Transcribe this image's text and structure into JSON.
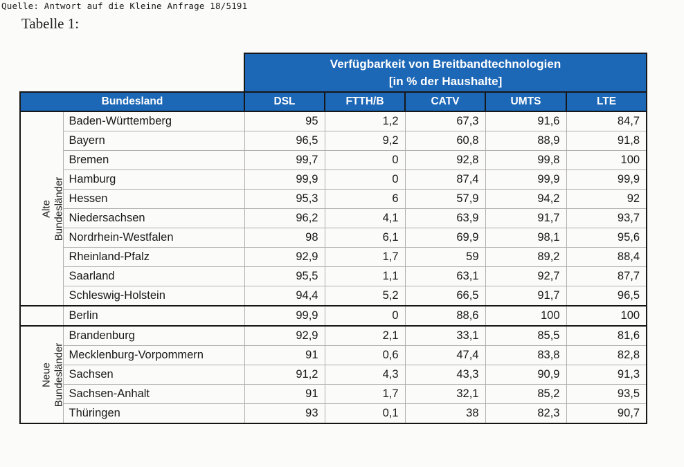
{
  "page": {
    "source_line": "Quelle: Antwort auf die Kleine Anfrage 18/5191",
    "caption": "Tabelle 1:"
  },
  "colors": {
    "header_blue": "#1c67b6",
    "border_dark": "#171717",
    "grid_gray": "#b0afac"
  },
  "table": {
    "title_line1": "Verfügbarkeit von Breitbandtechnologien",
    "title_line2": "[in % der Haushalte]",
    "bundesland_header": "Bundesland",
    "tech_headers": [
      "DSL",
      "FTTH/B",
      "CATV",
      "UMTS",
      "LTE"
    ],
    "row_groups": [
      {
        "label_line1": "Alte",
        "label_line2": "Bundesländer",
        "rows": [
          {
            "name": "Baden-Württemberg",
            "values": [
              "95",
              "1,2",
              "67,3",
              "91,6",
              "84,7"
            ]
          },
          {
            "name": "Bayern",
            "values": [
              "96,5",
              "9,2",
              "60,8",
              "88,9",
              "91,8"
            ]
          },
          {
            "name": "Bremen",
            "values": [
              "99,7",
              "0",
              "92,8",
              "99,8",
              "100"
            ]
          },
          {
            "name": "Hamburg",
            "values": [
              "99,9",
              "0",
              "87,4",
              "99,9",
              "99,9"
            ]
          },
          {
            "name": "Hessen",
            "values": [
              "95,3",
              "6",
              "57,9",
              "94,2",
              "92"
            ]
          },
          {
            "name": "Niedersachsen",
            "values": [
              "96,2",
              "4,1",
              "63,9",
              "91,7",
              "93,7"
            ]
          },
          {
            "name": "Nordrhein-Westfalen",
            "values": [
              "98",
              "6,1",
              "69,9",
              "98,1",
              "95,6"
            ]
          },
          {
            "name": "Rheinland-Pfalz",
            "values": [
              "92,9",
              "1,7",
              "59",
              "89,2",
              "88,4"
            ]
          },
          {
            "name": "Saarland",
            "values": [
              "95,5",
              "1,1",
              "63,1",
              "92,7",
              "87,7"
            ]
          },
          {
            "name": "Schleswig-Holstein",
            "values": [
              "94,4",
              "5,2",
              "66,5",
              "91,7",
              "96,5"
            ]
          }
        ]
      },
      {
        "label_line1": "",
        "label_line2": "",
        "rows": [
          {
            "name": "Berlin",
            "values": [
              "99,9",
              "0",
              "88,6",
              "100",
              "100"
            ]
          }
        ]
      },
      {
        "label_line1": "Neue",
        "label_line2": "Bundesländer",
        "rows": [
          {
            "name": "Brandenburg",
            "values": [
              "92,9",
              "2,1",
              "33,1",
              "85,5",
              "81,6"
            ]
          },
          {
            "name": "Mecklenburg-Vorpommern",
            "values": [
              "91",
              "0,6",
              "47,4",
              "83,8",
              "82,8"
            ]
          },
          {
            "name": "Sachsen",
            "values": [
              "91,2",
              "4,3",
              "43,3",
              "90,9",
              "91,3"
            ]
          },
          {
            "name": "Sachsen-Anhalt",
            "values": [
              "91",
              "1,7",
              "32,1",
              "85,2",
              "93,5"
            ]
          },
          {
            "name": "Thüringen",
            "values": [
              "93",
              "0,1",
              "38",
              "82,3",
              "90,7"
            ]
          }
        ]
      }
    ]
  }
}
